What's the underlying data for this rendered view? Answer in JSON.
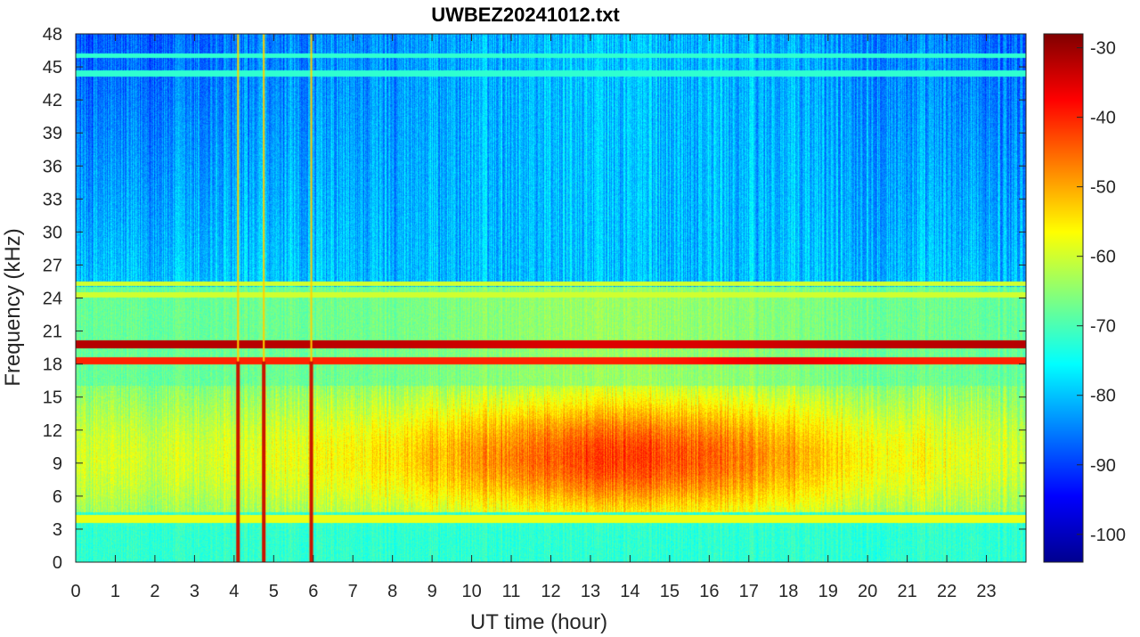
{
  "chart_data": {
    "type": "heatmap",
    "title": "UWBEZ20241012.txt",
    "xlabel": "UT time (hour)",
    "ylabel": "Frequency (kHz)",
    "xlim": [
      0,
      24
    ],
    "ylim": [
      0,
      48
    ],
    "x_ticks": [
      0,
      1,
      2,
      3,
      4,
      5,
      6,
      7,
      8,
      9,
      10,
      11,
      12,
      13,
      14,
      15,
      16,
      17,
      18,
      19,
      20,
      21,
      22,
      23
    ],
    "y_ticks": [
      0,
      3,
      6,
      9,
      12,
      15,
      18,
      21,
      24,
      27,
      30,
      33,
      36,
      39,
      42,
      45,
      48
    ],
    "colormap": "jet",
    "clim": [
      -104,
      -28
    ],
    "colorbar_ticks": [
      -30,
      -40,
      -50,
      -60,
      -70,
      -80,
      -90,
      -100
    ],
    "narrowband_lines_khz": [
      19.8,
      18.3,
      24.3,
      25.3,
      44.4,
      46.0,
      3.9
    ],
    "vertical_events_hour": [
      4.1,
      4.75,
      5.95
    ]
  }
}
